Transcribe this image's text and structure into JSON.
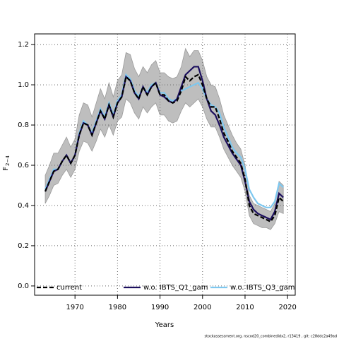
{
  "chart_data": {
    "type": "line",
    "xlabel": "Years",
    "ylabel": "F",
    "ylabel_sub": "2−4",
    "footnote": "stockassessment.org, nscod20_combinedidx2, r13419 , git: c28ddc2a49ad",
    "x": [
      1963,
      1964,
      1965,
      1966,
      1967,
      1968,
      1969,
      1970,
      1971,
      1972,
      1973,
      1974,
      1975,
      1976,
      1977,
      1978,
      1979,
      1980,
      1981,
      1982,
      1983,
      1984,
      1985,
      1986,
      1987,
      1988,
      1989,
      1990,
      1991,
      1992,
      1993,
      1994,
      1995,
      1996,
      1997,
      1998,
      1999,
      2000,
      2001,
      2002,
      2003,
      2004,
      2005,
      2006,
      2007,
      2008,
      2009,
      2010,
      2011,
      2012,
      2013,
      2014,
      2015,
      2016,
      2017,
      2018,
      2019
    ],
    "band": {
      "color": "#bebebe",
      "upper": [
        0.55,
        0.6,
        0.66,
        0.66,
        0.7,
        0.74,
        0.69,
        0.73,
        0.85,
        0.91,
        0.9,
        0.84,
        0.91,
        0.98,
        0.93,
        1.01,
        0.94,
        1.02,
        1.05,
        1.16,
        1.15,
        1.08,
        1.04,
        1.09,
        1.06,
        1.1,
        1.12,
        1.06,
        1.06,
        1.04,
        1.03,
        1.04,
        1.09,
        1.18,
        1.14,
        1.17,
        1.17,
        1.12,
        1.04,
        1.0,
        0.99,
        0.93,
        0.85,
        0.8,
        0.75,
        0.71,
        0.68,
        0.6,
        0.45,
        0.41,
        0.4,
        0.39,
        0.38,
        0.37,
        0.41,
        0.52,
        0.5
      ],
      "lower": [
        0.41,
        0.45,
        0.5,
        0.51,
        0.55,
        0.58,
        0.54,
        0.58,
        0.67,
        0.72,
        0.71,
        0.67,
        0.72,
        0.78,
        0.74,
        0.8,
        0.75,
        0.82,
        0.84,
        0.93,
        0.91,
        0.86,
        0.83,
        0.89,
        0.86,
        0.89,
        0.91,
        0.85,
        0.85,
        0.82,
        0.81,
        0.82,
        0.87,
        0.91,
        0.89,
        0.91,
        0.93,
        0.89,
        0.83,
        0.79,
        0.79,
        0.74,
        0.68,
        0.64,
        0.6,
        0.57,
        0.54,
        0.47,
        0.35,
        0.31,
        0.3,
        0.29,
        0.29,
        0.28,
        0.31,
        0.37,
        0.36
      ]
    },
    "series": [
      {
        "name": "current",
        "color": "#000000",
        "linestyle": "dashed",
        "values": [
          0.47,
          0.52,
          0.57,
          0.58,
          0.62,
          0.65,
          0.61,
          0.65,
          0.75,
          0.81,
          0.8,
          0.75,
          0.81,
          0.87,
          0.83,
          0.9,
          0.84,
          0.91,
          0.94,
          1.04,
          1.02,
          0.96,
          0.93,
          0.99,
          0.95,
          0.99,
          1.01,
          0.95,
          0.95,
          0.92,
          0.91,
          0.92,
          0.97,
          1.04,
          1.02,
          1.04,
          1.05,
          1.0,
          0.93,
          0.89,
          0.89,
          0.83,
          0.76,
          0.72,
          0.67,
          0.64,
          0.61,
          0.53,
          0.4,
          0.36,
          0.35,
          0.34,
          0.33,
          0.32,
          0.35,
          0.44,
          0.42
        ]
      },
      {
        "name": "w.o. IBTS_Q1_gam",
        "color": "#1c0f5e",
        "linestyle": "solid",
        "values": [
          0.47,
          0.52,
          0.57,
          0.58,
          0.62,
          0.65,
          0.61,
          0.65,
          0.75,
          0.81,
          0.8,
          0.75,
          0.81,
          0.87,
          0.83,
          0.9,
          0.84,
          0.91,
          0.94,
          1.04,
          1.02,
          0.96,
          0.93,
          0.99,
          0.95,
          0.99,
          1.01,
          0.95,
          0.94,
          0.92,
          0.91,
          0.93,
          0.99,
          1.05,
          1.07,
          1.09,
          1.09,
          1.02,
          0.93,
          0.87,
          0.85,
          0.8,
          0.74,
          0.7,
          0.66,
          0.63,
          0.6,
          0.52,
          0.42,
          0.38,
          0.36,
          0.35,
          0.34,
          0.33,
          0.37,
          0.46,
          0.44
        ]
      },
      {
        "name": "w.o. IBTS_Q3_gam",
        "color": "#7ec8f0",
        "linestyle": "solid",
        "values": [
          0.48,
          0.53,
          0.58,
          0.58,
          0.62,
          0.65,
          0.61,
          0.65,
          0.76,
          0.82,
          0.8,
          0.76,
          0.82,
          0.88,
          0.84,
          0.91,
          0.85,
          0.92,
          0.95,
          1.05,
          1.03,
          0.97,
          0.94,
          0.99,
          0.96,
          1.0,
          1.01,
          0.96,
          0.96,
          0.93,
          0.92,
          0.93,
          0.97,
          0.98,
          0.99,
          1.0,
          1.01,
          0.98,
          0.93,
          0.9,
          0.89,
          0.86,
          0.79,
          0.74,
          0.69,
          0.66,
          0.64,
          0.58,
          0.48,
          0.44,
          0.41,
          0.4,
          0.39,
          0.39,
          0.42,
          0.51,
          0.49
        ]
      }
    ],
    "xlim": [
      1960.5,
      2021.8
    ],
    "ylim": [
      -0.046,
      1.253
    ],
    "xticks": [
      1970,
      1980,
      1990,
      2000,
      2010,
      2020
    ],
    "yticks": [
      {
        "value": 0,
        "label": "0.0"
      },
      0.2,
      0.4,
      0.6,
      0.8,
      {
        "value": 1,
        "label": "1.0"
      },
      1.2
    ],
    "grid": true,
    "legend": "bottom"
  }
}
